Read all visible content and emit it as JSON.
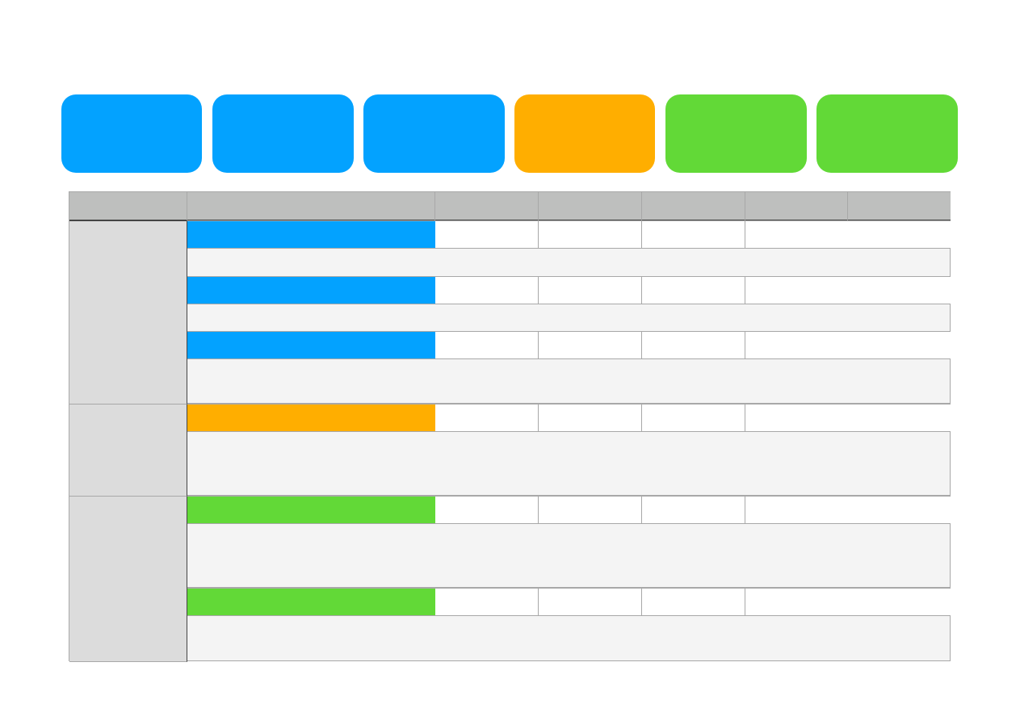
{
  "colors": {
    "blue": "#03a2ff",
    "orange": "#ffae00",
    "green": "#62d937",
    "header": "#bebfbe",
    "group": "#dcdcdc",
    "note": "#f4f4f4"
  },
  "cards": [
    {
      "color": "blue"
    },
    {
      "color": "blue"
    },
    {
      "color": "blue"
    },
    {
      "color": "orange"
    },
    {
      "color": "green"
    },
    {
      "color": "green"
    }
  ],
  "table": {
    "columns": 7,
    "groups": [
      {
        "color": "blue",
        "item_rows": 3
      },
      {
        "color": "orange",
        "item_rows": 1
      },
      {
        "color": "green",
        "item_rows": 2
      }
    ]
  }
}
